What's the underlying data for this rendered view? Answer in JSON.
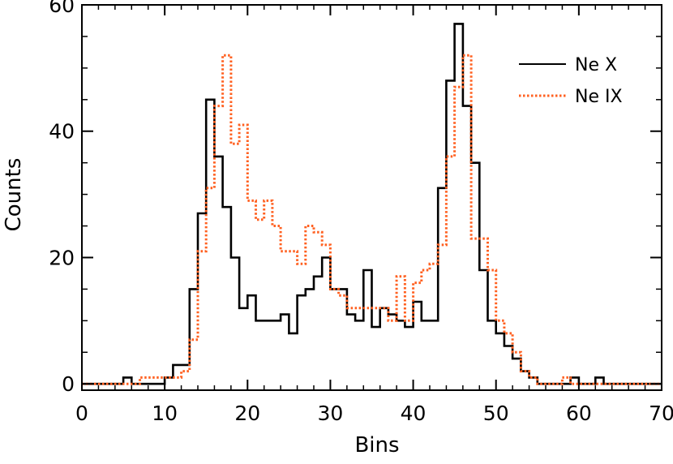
{
  "chart_data": {
    "type": "line",
    "step": true,
    "xlabel": "Bins",
    "ylabel": "Counts",
    "xlim": [
      0,
      70
    ],
    "ylim": [
      -1,
      60
    ],
    "xticks": [
      0,
      10,
      20,
      30,
      40,
      50,
      60,
      70
    ],
    "yticks": [
      0,
      20,
      40,
      60
    ],
    "legend_position": "top-right",
    "x": [
      0,
      1,
      2,
      3,
      4,
      5,
      6,
      7,
      8,
      9,
      10,
      11,
      12,
      13,
      14,
      15,
      16,
      17,
      18,
      19,
      20,
      21,
      22,
      23,
      24,
      25,
      26,
      27,
      28,
      29,
      30,
      31,
      32,
      33,
      34,
      35,
      36,
      37,
      38,
      39,
      40,
      41,
      42,
      43,
      44,
      45,
      46,
      47,
      48,
      49,
      50,
      51,
      52,
      53,
      54,
      55,
      56,
      57,
      58,
      59,
      60,
      61,
      62,
      63,
      64,
      65,
      66,
      67,
      68,
      69
    ],
    "series": [
      {
        "name": "Ne X",
        "color": "#000000",
        "style": "solid",
        "values": [
          0,
          0,
          0,
          0,
          0,
          1,
          0,
          0,
          0,
          0,
          1,
          3,
          3,
          15,
          27,
          45,
          36,
          28,
          20,
          12,
          14,
          10,
          10,
          10,
          11,
          8,
          14,
          15,
          17,
          20,
          15,
          15,
          11,
          10,
          18,
          9,
          12,
          11,
          10,
          9,
          13,
          10,
          10,
          31,
          48,
          57,
          44,
          35,
          18,
          10,
          8,
          6,
          4,
          2,
          1,
          0,
          0,
          0,
          0,
          1,
          0,
          0,
          1,
          0,
          0,
          0,
          0,
          0,
          0,
          0
        ]
      },
      {
        "name": "Ne IX",
        "color": "#ff6020",
        "style": "dotted",
        "values": [
          0,
          0,
          0,
          0,
          0,
          0,
          0,
          1,
          1,
          1,
          1,
          1,
          2,
          7,
          21,
          31,
          44,
          52,
          38,
          41,
          29,
          26,
          29,
          25,
          21,
          21,
          19,
          25,
          24,
          22,
          15,
          14,
          12,
          12,
          12,
          12,
          12,
          10,
          17,
          10,
          16,
          18,
          19,
          22,
          36,
          47,
          52,
          23,
          23,
          18,
          10,
          8,
          5,
          2,
          1,
          0,
          0,
          0,
          1,
          0,
          0,
          0,
          0,
          0,
          0,
          0,
          0,
          0,
          0,
          0
        ]
      }
    ]
  }
}
